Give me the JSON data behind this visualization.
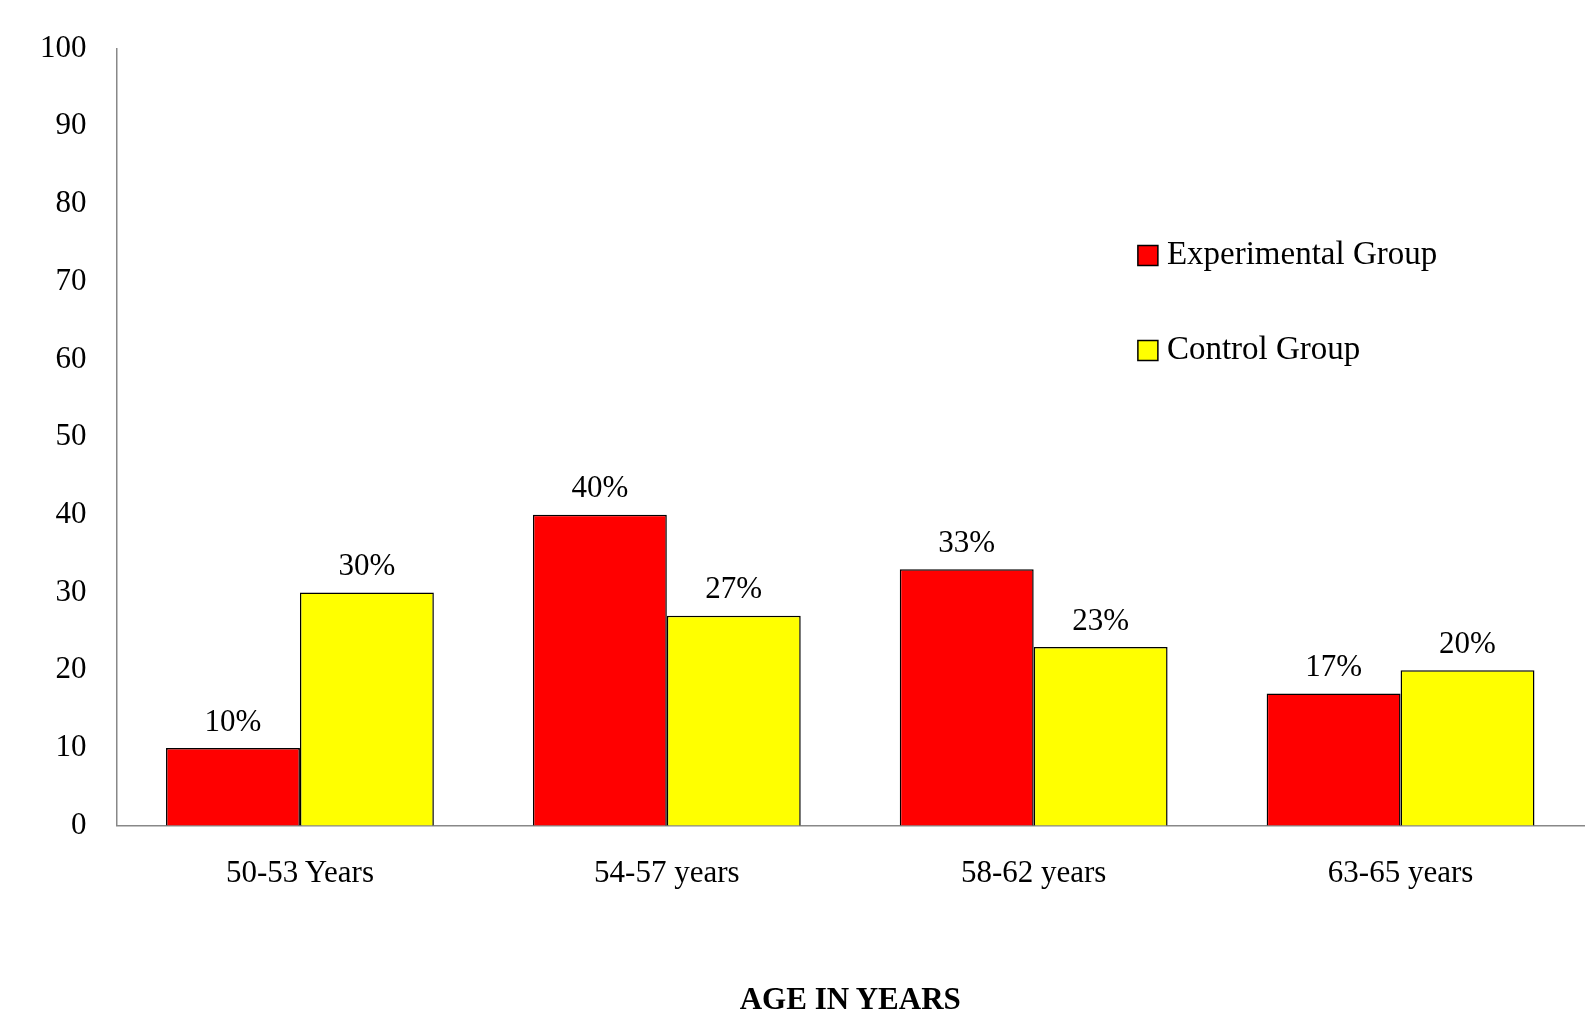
{
  "chart_data": {
    "type": "bar",
    "xlabel": "AGE IN YEARS",
    "categories": [
      "50-53 Years",
      "54-57 years",
      "58-62 years",
      "63-65 years"
    ],
    "series": [
      {
        "name": "Experimental Group",
        "color": "#ff0000",
        "values": [
          10,
          40,
          33,
          17
        ],
        "value_labels": [
          "10%",
          "40%",
          "33%",
          "17%"
        ]
      },
      {
        "name": "Control Group",
        "color": "#ffff00",
        "values": [
          30,
          27,
          23,
          20
        ],
        "value_labels": [
          "30%",
          "27%",
          "23%",
          "20%"
        ]
      }
    ],
    "ylim": [
      0,
      100
    ],
    "yticks": [
      0,
      10,
      20,
      30,
      40,
      50,
      60,
      70,
      80,
      90,
      100
    ],
    "grid": false,
    "legend": "top right"
  }
}
